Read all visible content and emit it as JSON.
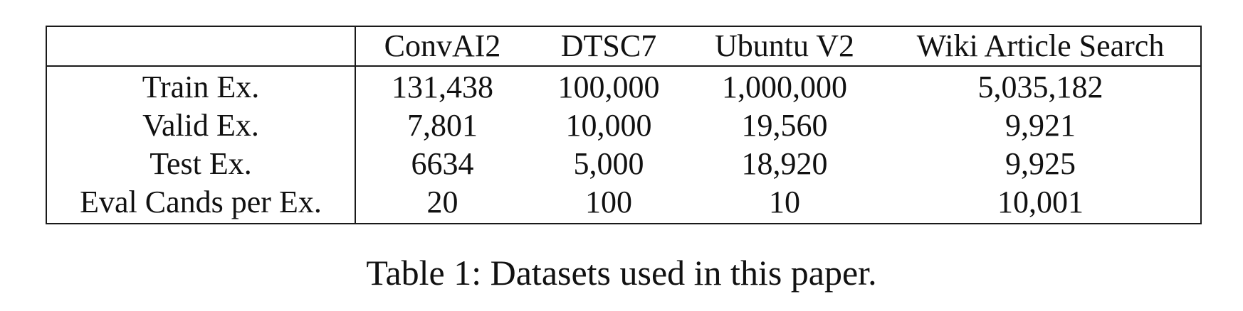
{
  "table": {
    "corner": "",
    "columns": [
      "ConvAI2",
      "DTSC7",
      "Ubuntu V2",
      "Wiki Article Search"
    ],
    "rows": [
      {
        "label": "Train Ex.",
        "cells": [
          "131,438",
          "100,000",
          "1,000,000",
          "5,035,182"
        ]
      },
      {
        "label": "Valid Ex.",
        "cells": [
          "7,801",
          "10,000",
          "19,560",
          "9,921"
        ]
      },
      {
        "label": "Test Ex.",
        "cells": [
          "6634",
          "5,000",
          "18,920",
          "9,925"
        ]
      },
      {
        "label": "Eval Cands per Ex.",
        "cells": [
          "20",
          "100",
          "10",
          "10,001"
        ]
      }
    ]
  },
  "caption": "Table 1: Datasets used in this paper."
}
